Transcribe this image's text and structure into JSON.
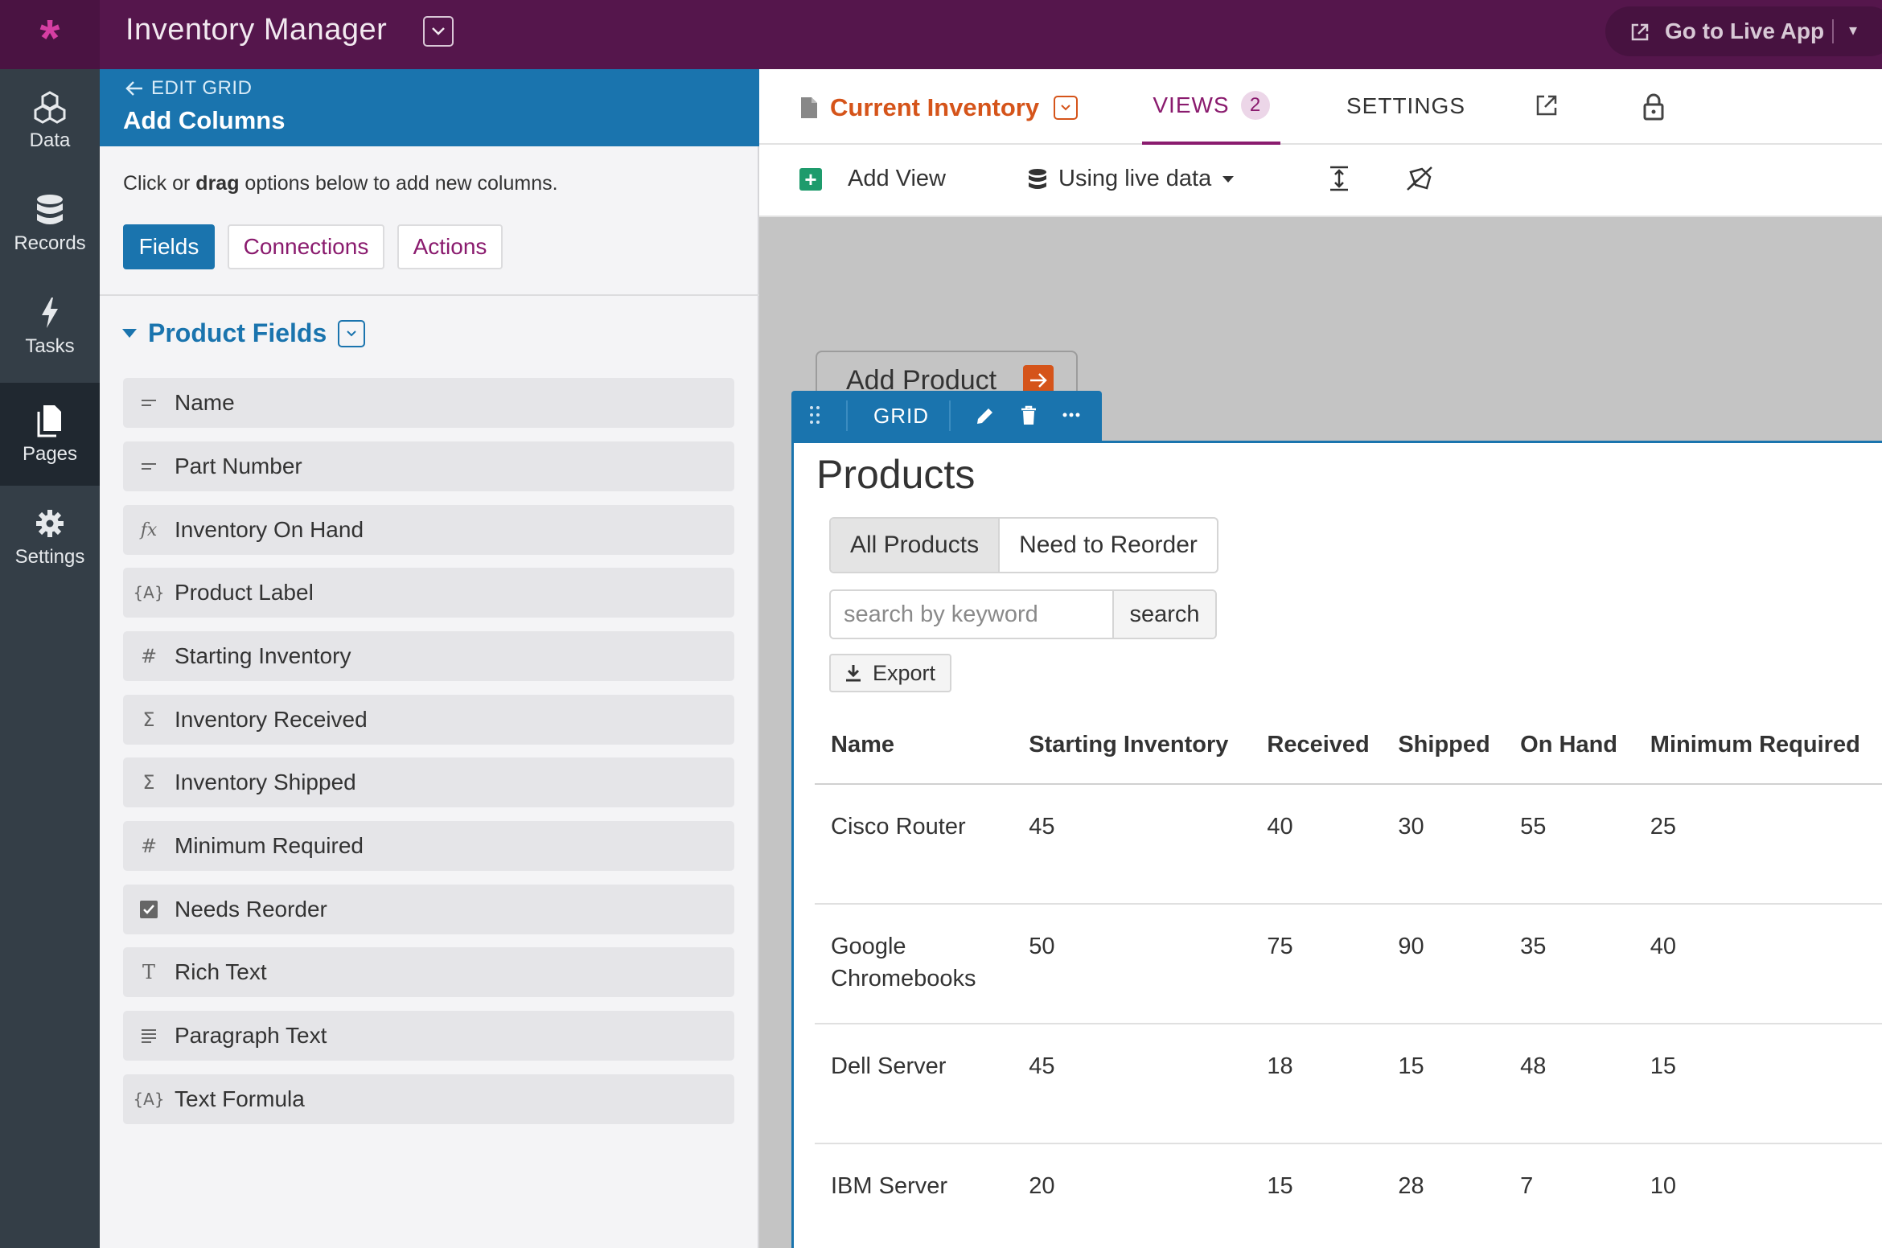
{
  "app": {
    "title": "Inventory Manager",
    "live_button_label": "Go to Live App"
  },
  "nav": {
    "items": [
      {
        "label": "Data",
        "icon": "cubes-icon"
      },
      {
        "label": "Records",
        "icon": "database-icon"
      },
      {
        "label": "Tasks",
        "icon": "bolt-icon"
      },
      {
        "label": "Pages",
        "icon": "pages-icon",
        "active": true
      },
      {
        "label": "Settings",
        "icon": "gear-icon"
      }
    ]
  },
  "panel": {
    "back_label": "EDIT GRID",
    "title": "Add Columns",
    "hint_pre": "Click or ",
    "hint_bold": "drag",
    "hint_post": " options below to add new columns.",
    "tabs": [
      "Fields",
      "Connections",
      "Actions"
    ],
    "section_title": "Product Fields",
    "fields": [
      {
        "label": "Name",
        "icon": "short-text-icon"
      },
      {
        "label": "Part Number",
        "icon": "short-text-icon"
      },
      {
        "label": "Inventory On Hand",
        "icon": "formula-icon"
      },
      {
        "label": "Product Label",
        "icon": "text-formula-icon"
      },
      {
        "label": "Starting Inventory",
        "icon": "number-icon"
      },
      {
        "label": "Inventory Received",
        "icon": "sum-icon"
      },
      {
        "label": "Inventory Shipped",
        "icon": "sum-icon"
      },
      {
        "label": "Minimum Required",
        "icon": "number-icon"
      },
      {
        "label": "Needs Reorder",
        "icon": "checkbox-icon"
      },
      {
        "label": "Rich Text",
        "icon": "rich-text-icon"
      },
      {
        "label": "Paragraph Text",
        "icon": "paragraph-icon"
      },
      {
        "label": "Text Formula",
        "icon": "text-formula-icon"
      }
    ]
  },
  "page": {
    "name": "Current Inventory",
    "views_label": "VIEWS",
    "views_count": "2",
    "settings_label": "SETTINGS",
    "add_view_label": "Add View",
    "live_data_label": "Using live data"
  },
  "canvas": {
    "add_product_label": "Add Product",
    "grid_label": "GRID",
    "products_title": "Products",
    "filters": [
      "All Products",
      "Need to Reorder"
    ],
    "search_placeholder": "search by keyword",
    "search_button": "search",
    "export_label": "Export",
    "columns": [
      "Name",
      "Starting Inventory",
      "Received",
      "Shipped",
      "On Hand",
      "Minimum Required"
    ],
    "rows": [
      [
        "Cisco Router",
        "45",
        "40",
        "30",
        "55",
        "25"
      ],
      [
        "Google Chromebooks",
        "50",
        "75",
        "90",
        "35",
        "40"
      ],
      [
        "Dell Server",
        "45",
        "18",
        "15",
        "48",
        "15"
      ],
      [
        "IBM Server",
        "20",
        "15",
        "28",
        "7",
        "10"
      ]
    ]
  },
  "colors": {
    "topbar": "#55164c",
    "accent_blue": "#1a74ae",
    "accent_orange": "#d5541a",
    "accent_purple": "#8a1b6e",
    "nav": "#343e47"
  }
}
